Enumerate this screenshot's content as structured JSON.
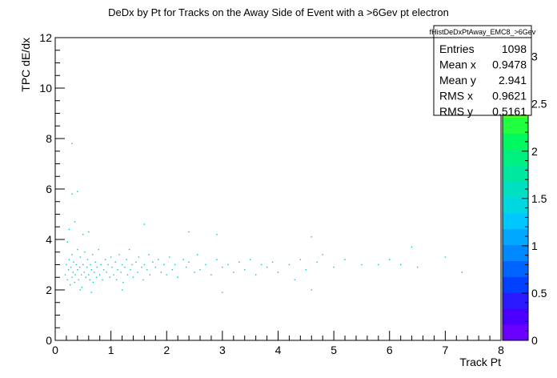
{
  "chart_data": {
    "type": "heatmap",
    "title": "DeDx by Pt for Tracks on the Away Side of Event with a >6Gev pt electron",
    "xlabel": "Track Pt",
    "ylabel": "TPC dE/dx",
    "xlim": [
      0,
      8
    ],
    "ylim": [
      0,
      12
    ],
    "x_ticks": [
      "0",
      "1",
      "2",
      "3",
      "4",
      "5",
      "6",
      "7",
      "8"
    ],
    "y_ticks": [
      "0",
      "2",
      "4",
      "6",
      "8",
      "10",
      "12"
    ],
    "z_range": [
      0,
      3.2
    ],
    "z_ticks": [
      "0",
      "0.5",
      "1",
      "1.5",
      "2",
      "2.5",
      "3"
    ],
    "colors": {
      "points": "#00c8c8",
      "palette": [
        "#6a00ff",
        "#4b00ff",
        "#2a1aff",
        "#0040ff",
        "#0064ff",
        "#0088ff",
        "#00a8ff",
        "#00c8ff",
        "#00d8e0",
        "#00e0c0",
        "#00e8a0",
        "#00f080",
        "#00f860",
        "#20ff40",
        "#50ff20",
        "#80ff00",
        "#a8ff00",
        "#d0ff00",
        "#f0ff00"
      ]
    },
    "points": [
      [
        0.18,
        2.6
      ],
      [
        0.2,
        3.0
      ],
      [
        0.22,
        2.4
      ],
      [
        0.24,
        2.8
      ],
      [
        0.25,
        3.2
      ],
      [
        0.27,
        2.2
      ],
      [
        0.28,
        2.9
      ],
      [
        0.3,
        3.4
      ],
      [
        0.3,
        2.5
      ],
      [
        0.32,
        2.7
      ],
      [
        0.33,
        3.1
      ],
      [
        0.35,
        2.3
      ],
      [
        0.36,
        2.6
      ],
      [
        0.38,
        3.0
      ],
      [
        0.4,
        2.8
      ],
      [
        0.4,
        3.6
      ],
      [
        0.42,
        2.4
      ],
      [
        0.44,
        2.9
      ],
      [
        0.45,
        3.3
      ],
      [
        0.47,
        2.6
      ],
      [
        0.48,
        2.1
      ],
      [
        0.5,
        3.0
      ],
      [
        0.52,
        2.7
      ],
      [
        0.53,
        3.5
      ],
      [
        0.55,
        2.5
      ],
      [
        0.57,
        2.9
      ],
      [
        0.58,
        3.2
      ],
      [
        0.6,
        2.6
      ],
      [
        0.62,
        2.4
      ],
      [
        0.63,
        3.0
      ],
      [
        0.65,
        2.8
      ],
      [
        0.67,
        3.4
      ],
      [
        0.68,
        2.3
      ],
      [
        0.7,
        2.7
      ],
      [
        0.72,
        3.1
      ],
      [
        0.74,
        2.5
      ],
      [
        0.75,
        2.9
      ],
      [
        0.78,
        3.6
      ],
      [
        0.8,
        2.6
      ],
      [
        0.82,
        3.0
      ],
      [
        0.85,
        2.4
      ],
      [
        0.87,
        2.8
      ],
      [
        0.9,
        3.2
      ],
      [
        0.92,
        2.7
      ],
      [
        0.95,
        3.0
      ],
      [
        0.98,
        2.5
      ],
      [
        1.0,
        3.3
      ],
      [
        1.02,
        2.9
      ],
      [
        1.05,
        2.6
      ],
      [
        1.08,
        3.1
      ],
      [
        1.1,
        2.4
      ],
      [
        1.12,
        2.8
      ],
      [
        1.15,
        3.4
      ],
      [
        1.18,
        2.7
      ],
      [
        1.2,
        3.0
      ],
      [
        1.22,
        2.3
      ],
      [
        1.25,
        2.9
      ],
      [
        1.28,
        3.2
      ],
      [
        1.3,
        2.6
      ],
      [
        1.33,
        3.6
      ],
      [
        1.35,
        2.8
      ],
      [
        1.38,
        3.0
      ],
      [
        1.4,
        2.5
      ],
      [
        1.45,
        3.1
      ],
      [
        1.48,
        2.7
      ],
      [
        1.5,
        3.3
      ],
      [
        1.55,
        2.9
      ],
      [
        1.58,
        2.4
      ],
      [
        1.6,
        3.0
      ],
      [
        1.65,
        2.8
      ],
      [
        1.68,
        3.4
      ],
      [
        1.7,
        2.6
      ],
      [
        1.75,
        3.1
      ],
      [
        1.8,
        2.9
      ],
      [
        1.85,
        3.2
      ],
      [
        1.9,
        2.7
      ],
      [
        1.95,
        3.0
      ],
      [
        2.0,
        2.6
      ],
      [
        2.05,
        3.3
      ],
      [
        2.1,
        2.8
      ],
      [
        2.15,
        3.0
      ],
      [
        2.2,
        2.5
      ],
      [
        2.3,
        3.2
      ],
      [
        2.35,
        2.9
      ],
      [
        2.4,
        3.1
      ],
      [
        2.5,
        2.7
      ],
      [
        2.55,
        3.4
      ],
      [
        2.6,
        2.8
      ],
      [
        2.7,
        3.0
      ],
      [
        2.8,
        2.6
      ],
      [
        2.9,
        3.2
      ],
      [
        3.0,
        2.9
      ],
      [
        3.1,
        3.0
      ],
      [
        3.2,
        2.7
      ],
      [
        3.3,
        3.1
      ],
      [
        3.4,
        2.8
      ],
      [
        3.5,
        3.2
      ],
      [
        3.6,
        2.6
      ],
      [
        3.7,
        3.0
      ],
      [
        3.8,
        2.9
      ],
      [
        3.9,
        3.1
      ],
      [
        4.0,
        2.7
      ],
      [
        4.2,
        3.0
      ],
      [
        4.3,
        2.4
      ],
      [
        4.4,
        3.2
      ],
      [
        4.5,
        2.8
      ],
      [
        4.6,
        2.0
      ],
      [
        4.7,
        3.1
      ],
      [
        4.8,
        3.4
      ],
      [
        5.0,
        2.9
      ],
      [
        5.2,
        3.2
      ],
      [
        5.5,
        3.0
      ],
      [
        5.8,
        3.0
      ],
      [
        6.0,
        3.2
      ],
      [
        6.2,
        3.0
      ],
      [
        6.4,
        3.7
      ],
      [
        6.5,
        2.9
      ],
      [
        7.0,
        3.3
      ],
      [
        7.3,
        2.7
      ],
      [
        0.25,
        4.4
      ],
      [
        0.35,
        4.7
      ],
      [
        0.3,
        5.8
      ],
      [
        0.4,
        5.9
      ],
      [
        0.3,
        7.8
      ],
      [
        0.5,
        4.2
      ],
      [
        1.6,
        4.6
      ],
      [
        2.4,
        4.3
      ],
      [
        0.6,
        4.3
      ],
      [
        0.22,
        3.9
      ],
      [
        0.45,
        2.0
      ],
      [
        0.65,
        1.9
      ],
      [
        1.2,
        2.0
      ],
      [
        3.0,
        1.9
      ],
      [
        2.9,
        4.2
      ],
      [
        4.6,
        4.1
      ]
    ],
    "stats": {
      "name": "fHistDeDxPtAway_EMC8_>6Gev",
      "rows": [
        {
          "label": "Entries",
          "value": "1098"
        },
        {
          "label": "Mean x",
          "value": "0.9478"
        },
        {
          "label": "Mean y",
          "value": "2.941"
        },
        {
          "label": "RMS x",
          "value": "0.9621"
        },
        {
          "label": "RMS y",
          "value": "0.5161"
        }
      ]
    }
  }
}
